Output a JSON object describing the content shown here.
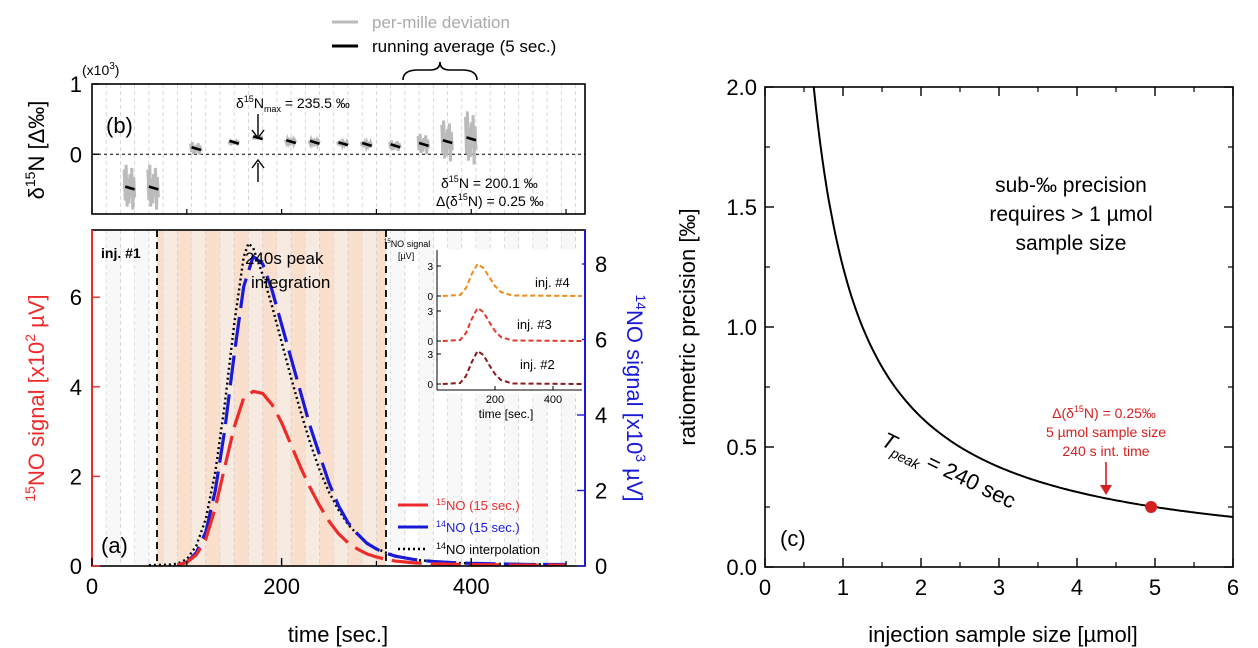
{
  "legend_top": {
    "deviation": "per-mille deviation",
    "running": "running average (5 sec.)"
  },
  "panel_b": {
    "label": "(b)",
    "multiplier": "(x10",
    "multiplier_exp": "3",
    "multiplier_close": ")",
    "ylabel_pre": "δ",
    "ylabel_sup": "15",
    "ylabel_post": "N [Δ‰]",
    "yticks": [
      "1",
      "0"
    ],
    "ann_max_pre": "δ",
    "ann_max_sup": "15",
    "ann_max_mid": "N",
    "ann_max_sub": "max",
    "ann_max_post": " = 235.5 ‰",
    "ann_mean_pre": "δ",
    "ann_mean_sup": "15",
    "ann_mean_post": "N = 200.1 ‰",
    "ann_delta_pre": "Δ(δ",
    "ann_delta_sup": "15",
    "ann_delta_post": "N) = 0.25 ‰"
  },
  "panel_a": {
    "label": "(a)",
    "inj1": "inj. #1",
    "peak_line1": "240s peak",
    "peak_line2": "integration",
    "xlabel": "time [sec.]",
    "xticks": [
      "0",
      "200",
      "400"
    ],
    "yleft_ticks": [
      "0",
      "2",
      "4",
      "6"
    ],
    "yright_ticks": [
      "0",
      "2",
      "4",
      "6",
      "8"
    ],
    "ylabel_left_sup": "15",
    "ylabel_left": "NO signal [x10",
    "ylabel_left_exp": "2",
    "ylabel_left_unit": " µV]",
    "ylabel_right_sup": "14",
    "ylabel_right": "NO signal [x10",
    "ylabel_right_exp": "3",
    "ylabel_right_unit": " µV]",
    "legend": [
      {
        "sup": "15",
        "text": "NO (15 sec.)",
        "color": "#ee2b2b"
      },
      {
        "sup": "14",
        "text": "NO (15 sec.)",
        "color": "#1a1ad6"
      },
      {
        "sup": "14",
        "text": "NO interpolation",
        "color": "#000000"
      }
    ],
    "colors": {
      "no15": "#ee2b2b",
      "no14": "#1a1ad6",
      "interp": "#000000",
      "shade": "#f9dcc8",
      "right_axis": "#1a1ad6",
      "left_axis": "#ee2b2b"
    }
  },
  "inset": {
    "ylabel_sup": "15",
    "ylabel": "NO signal",
    "ylabel2": "[µV]",
    "xlabel": "time [sec.]",
    "xticks": [
      "200",
      "400"
    ],
    "yticks": [
      "3",
      "0"
    ],
    "labels": [
      "inj. #4",
      "inj. #3",
      "inj. #2"
    ],
    "colors": [
      "#f08a1c",
      "#e03b2a",
      "#8b1a1a"
    ]
  },
  "panel_c": {
    "label": "(c)",
    "xlabel": "injection sample size [µmol]",
    "ylabel": "ratiometric precision [‰]",
    "xticks": [
      "0",
      "1",
      "2",
      "3",
      "4",
      "5",
      "6"
    ],
    "yticks": [
      "0.0",
      "0.5",
      "1.0",
      "1.5",
      "2.0"
    ],
    "text_line1": "sub-‰ precision",
    "text_line2": "requires  > 1 µmol",
    "text_line3": "sample size",
    "curve_label_T": "T",
    "curve_label_sub": "peak",
    "curve_label_post": " = 240 sec",
    "ann_line1_pre": "Δ(δ",
    "ann_line1_sup": "15",
    "ann_line1_post": "N) = 0.25‰",
    "ann_line2": "5 µmol sample size",
    "ann_line3": "240 s int. time",
    "color": "#d42020"
  },
  "chart_data": [
    {
      "type": "line",
      "panel": "b",
      "xlim": [
        0,
        520
      ],
      "ylim": [
        -0.85,
        1.0
      ],
      "segments_x_center": [
        40,
        65,
        110,
        150,
        175,
        210,
        235,
        265,
        290,
        320,
        350,
        375,
        400
      ],
      "running_average": [
        -0.48,
        -0.48,
        0.08,
        0.17,
        0.2355,
        0.18,
        0.17,
        0.15,
        0.14,
        0.12,
        0.14,
        0.18,
        0.22
      ],
      "mean_delta15N": 200.1,
      "max_delta15N": 235.5
    },
    {
      "type": "line",
      "panel": "a",
      "xlim": [
        0,
        520
      ],
      "ylim_left": [
        0,
        7.5
      ],
      "ylim_right": [
        0,
        8.9
      ],
      "integration_window": [
        70,
        310
      ],
      "series": [
        {
          "name": "15NO (15 sec.)",
          "axis": "left",
          "x": [
            90,
            100,
            110,
            120,
            130,
            140,
            150,
            160,
            170,
            180,
            190,
            200,
            210,
            220,
            230,
            240,
            250,
            260,
            270,
            280,
            290,
            300,
            310,
            320,
            340,
            360,
            380,
            400,
            420,
            440,
            460,
            480,
            500
          ],
          "y": [
            0.02,
            0.08,
            0.25,
            0.6,
            1.3,
            2.2,
            3.1,
            3.75,
            3.9,
            3.85,
            3.6,
            3.2,
            2.7,
            2.2,
            1.75,
            1.35,
            1.0,
            0.72,
            0.52,
            0.38,
            0.27,
            0.2,
            0.15,
            0.11,
            0.07,
            0.05,
            0.04,
            0.03,
            0.03,
            0.02,
            0.02,
            0.02,
            0.02
          ]
        },
        {
          "name": "14NO (15 sec.)",
          "axis": "right",
          "x": [
            90,
            100,
            110,
            120,
            130,
            140,
            150,
            160,
            170,
            180,
            190,
            200,
            210,
            220,
            230,
            240,
            250,
            260,
            270,
            280,
            290,
            300,
            310,
            320,
            340,
            360,
            380,
            400,
            420,
            440,
            460,
            480,
            500
          ],
          "y": [
            0.02,
            0.1,
            0.35,
            0.9,
            2.0,
            3.6,
            5.6,
            7.4,
            8.2,
            8.0,
            7.3,
            6.4,
            5.5,
            4.6,
            3.7,
            2.95,
            2.2,
            1.6,
            1.15,
            0.85,
            0.6,
            0.45,
            0.34,
            0.26,
            0.17,
            0.12,
            0.09,
            0.07,
            0.06,
            0.05,
            0.04,
            0.04,
            0.04
          ]
        },
        {
          "name": "14NO interpolation",
          "axis": "left",
          "x": [
            60,
            80,
            90,
            100,
            110,
            120,
            130,
            140,
            150,
            160,
            165,
            170,
            180,
            190,
            200,
            210,
            220,
            230,
            240,
            250,
            260,
            270,
            280,
            290,
            300,
            310,
            320,
            340,
            360,
            380,
            400,
            420,
            440,
            460,
            480,
            500
          ],
          "y": [
            0.02,
            0.03,
            0.05,
            0.15,
            0.45,
            1.05,
            2.1,
            3.6,
            5.4,
            6.9,
            7.2,
            7.1,
            6.5,
            5.8,
            5.0,
            4.2,
            3.45,
            2.75,
            2.15,
            1.65,
            1.25,
            0.93,
            0.7,
            0.52,
            0.39,
            0.3,
            0.23,
            0.14,
            0.1,
            0.07,
            0.06,
            0.05,
            0.05,
            0.04,
            0.04,
            0.04
          ]
        }
      ]
    },
    {
      "type": "line",
      "panel": "a-inset",
      "xlim": [
        0,
        500
      ],
      "series": [
        {
          "name": "inj. #4",
          "x": [
            20,
            80,
            100,
            120,
            140,
            160,
            180,
            200,
            220,
            260,
            500
          ],
          "y": [
            0,
            0.1,
            0.8,
            2.2,
            3.2,
            2.8,
            1.9,
            1.0,
            0.4,
            0.05,
            0
          ]
        },
        {
          "name": "inj. #3",
          "x": [
            20,
            80,
            100,
            120,
            140,
            160,
            180,
            200,
            220,
            260,
            500
          ],
          "y": [
            0,
            0.1,
            0.8,
            2.2,
            3.3,
            2.9,
            1.9,
            1.0,
            0.4,
            0.05,
            0
          ]
        },
        {
          "name": "inj. #2",
          "x": [
            20,
            80,
            100,
            120,
            140,
            160,
            180,
            200,
            220,
            260,
            500
          ],
          "y": [
            0,
            0.1,
            0.8,
            2.2,
            3.3,
            2.9,
            1.9,
            1.0,
            0.4,
            0.05,
            0
          ]
        }
      ]
    },
    {
      "type": "line",
      "panel": "c",
      "xlim": [
        0,
        6
      ],
      "ylim": [
        0,
        2.0
      ],
      "series": [
        {
          "name": "Tpeak = 240 sec",
          "function": "y = 1.25 / x",
          "x": [
            0.625,
            0.7,
            0.8,
            0.9,
            1.0,
            1.2,
            1.5,
            2.0,
            2.5,
            3.0,
            3.5,
            4.0,
            4.5,
            5.0,
            5.5,
            6.0
          ],
          "y": [
            2.0,
            1.786,
            1.5625,
            1.389,
            1.25,
            1.042,
            0.833,
            0.625,
            0.5,
            0.417,
            0.357,
            0.3125,
            0.278,
            0.25,
            0.227,
            0.208
          ]
        }
      ],
      "marker": {
        "x": 4.95,
        "y": 0.25
      }
    }
  ]
}
